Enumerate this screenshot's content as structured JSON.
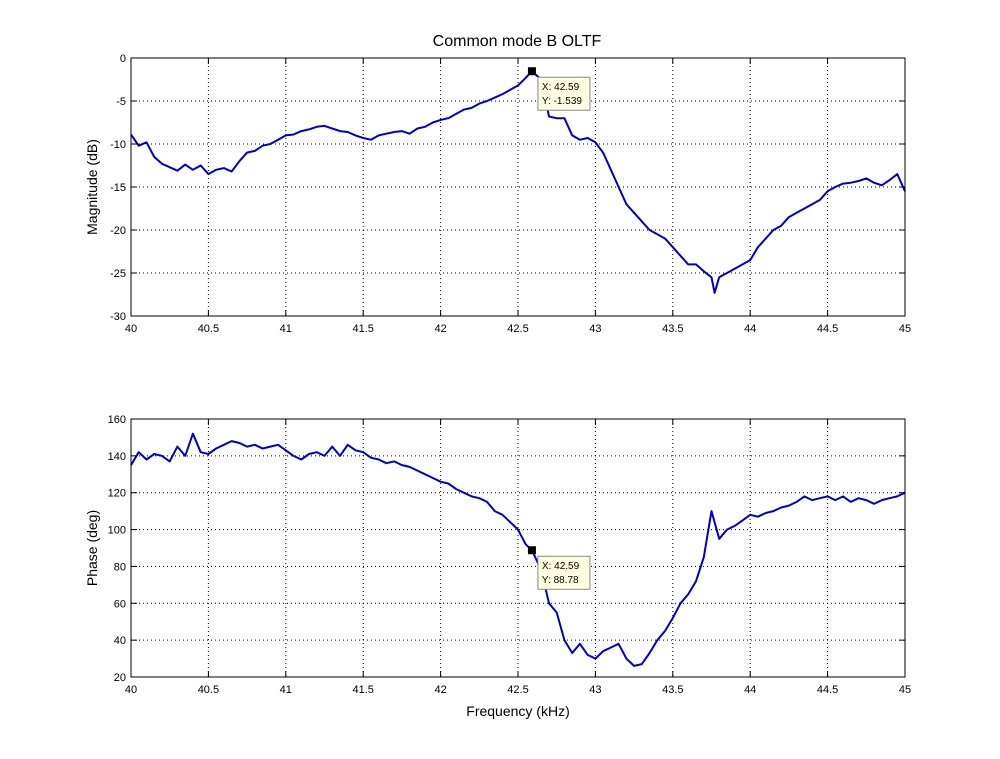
{
  "chart_data": [
    {
      "type": "line",
      "title": "Common mode B OLTF",
      "xlabel": "",
      "ylabel": "Magnitude (dB)",
      "xlim": [
        40,
        45
      ],
      "ylim": [
        -30,
        0
      ],
      "grid": true,
      "xticks": [
        "40",
        "40.5",
        "41",
        "41.5",
        "42",
        "42.5",
        "43",
        "43.5",
        "44",
        "44.5",
        "45"
      ],
      "yticks": [
        "0",
        "-5",
        "-10",
        "-15",
        "-20",
        "-25",
        "-30"
      ],
      "series_color": "#0000cc",
      "x": [
        40.0,
        40.05,
        40.1,
        40.15,
        40.2,
        40.25,
        40.3,
        40.35,
        40.4,
        40.45,
        40.5,
        40.55,
        40.6,
        40.65,
        40.7,
        40.75,
        40.8,
        40.85,
        40.9,
        40.95,
        41.0,
        41.05,
        41.1,
        41.15,
        41.2,
        41.25,
        41.3,
        41.35,
        41.4,
        41.45,
        41.5,
        41.55,
        41.6,
        41.65,
        41.7,
        41.75,
        41.8,
        41.85,
        41.9,
        41.95,
        42.0,
        42.05,
        42.1,
        42.15,
        42.2,
        42.25,
        42.3,
        42.35,
        42.4,
        42.45,
        42.5,
        42.55,
        42.59,
        42.65,
        42.7,
        42.75,
        42.8,
        42.85,
        42.9,
        42.95,
        43.0,
        43.05,
        43.1,
        43.15,
        43.2,
        43.25,
        43.3,
        43.35,
        43.4,
        43.45,
        43.5,
        43.55,
        43.6,
        43.65,
        43.7,
        43.75,
        43.77,
        43.8,
        43.85,
        43.9,
        43.95,
        44.0,
        44.05,
        44.1,
        44.15,
        44.2,
        44.25,
        44.3,
        44.35,
        44.4,
        44.45,
        44.5,
        44.55,
        44.6,
        44.65,
        44.7,
        44.75,
        44.8,
        44.85,
        44.9,
        44.95,
        45.0
      ],
      "y": [
        -8.9,
        -10.2,
        -9.8,
        -11.5,
        -12.3,
        -12.7,
        -13.1,
        -12.4,
        -13.0,
        -12.5,
        -13.5,
        -13.0,
        -12.8,
        -13.2,
        -12.0,
        -11.0,
        -10.8,
        -10.2,
        -10.0,
        -9.5,
        -9.0,
        -8.9,
        -8.5,
        -8.3,
        -8.0,
        -7.9,
        -8.2,
        -8.5,
        -8.6,
        -9.0,
        -9.3,
        -9.5,
        -9.0,
        -8.8,
        -8.6,
        -8.5,
        -8.8,
        -8.2,
        -8.0,
        -7.5,
        -7.2,
        -7.0,
        -6.5,
        -6.0,
        -5.8,
        -5.3,
        -5.0,
        -4.6,
        -4.2,
        -3.7,
        -3.2,
        -2.3,
        -1.539,
        -2.5,
        -6.8,
        -7.0,
        -7.0,
        -9.0,
        -9.5,
        -9.3,
        -9.8,
        -11.0,
        -13.0,
        -15.0,
        -17.0,
        -18.0,
        -19.0,
        -20.0,
        -20.5,
        -21.0,
        -22.0,
        -23.0,
        -24.0,
        -24.0,
        -24.8,
        -25.5,
        -27.3,
        -25.5,
        -25.0,
        -24.5,
        -24.0,
        -23.5,
        -22.0,
        -21.0,
        -20.0,
        -19.5,
        -18.5,
        -18.0,
        -17.5,
        -17.0,
        -16.5,
        -15.5,
        -15.0,
        -14.6,
        -14.5,
        -14.3,
        -14.0,
        -14.5,
        -14.8,
        -14.2,
        -13.5,
        -15.5
      ],
      "annotation": {
        "x_label": "X: 42.59",
        "y_label": "Y: -1.539",
        "x": 42.59,
        "y": -1.539
      }
    },
    {
      "type": "line",
      "title": "",
      "xlabel": "Frequency (kHz)",
      "ylabel": "Phase (deg)",
      "xlim": [
        40,
        45
      ],
      "ylim": [
        20,
        160
      ],
      "grid": true,
      "xticks": [
        "40",
        "40.5",
        "41",
        "41.5",
        "42",
        "42.5",
        "43",
        "43.5",
        "44",
        "44.5",
        "45"
      ],
      "yticks": [
        "160",
        "140",
        "120",
        "100",
        "80",
        "60",
        "40",
        "20"
      ],
      "series_color": "#0000cc",
      "x": [
        40.0,
        40.05,
        40.1,
        40.15,
        40.2,
        40.25,
        40.3,
        40.35,
        40.4,
        40.45,
        40.5,
        40.55,
        40.6,
        40.65,
        40.7,
        40.75,
        40.8,
        40.85,
        40.9,
        40.95,
        41.0,
        41.05,
        41.1,
        41.15,
        41.2,
        41.25,
        41.3,
        41.35,
        41.4,
        41.45,
        41.5,
        41.55,
        41.6,
        41.65,
        41.7,
        41.75,
        41.8,
        41.85,
        41.9,
        41.95,
        42.0,
        42.05,
        42.1,
        42.15,
        42.2,
        42.25,
        42.3,
        42.35,
        42.4,
        42.45,
        42.5,
        42.55,
        42.59,
        42.65,
        42.7,
        42.75,
        42.8,
        42.85,
        42.9,
        42.95,
        43.0,
        43.05,
        43.1,
        43.15,
        43.2,
        43.25,
        43.3,
        43.35,
        43.4,
        43.45,
        43.5,
        43.55,
        43.6,
        43.65,
        43.7,
        43.75,
        43.8,
        43.85,
        43.9,
        43.95,
        44.0,
        44.05,
        44.1,
        44.15,
        44.2,
        44.25,
        44.3,
        44.35,
        44.4,
        44.45,
        44.5,
        44.55,
        44.6,
        44.65,
        44.7,
        44.75,
        44.8,
        44.85,
        44.9,
        44.95,
        45.0
      ],
      "y": [
        135,
        142,
        138,
        141,
        140,
        137,
        145,
        140,
        152,
        142,
        141,
        144,
        146,
        148,
        147,
        145,
        146,
        144,
        145,
        146,
        143,
        140,
        138,
        141,
        142,
        140,
        145,
        140,
        146,
        143,
        142,
        139,
        138,
        136,
        137,
        135,
        134,
        132,
        130,
        128,
        126,
        125,
        122,
        120,
        118,
        117,
        115,
        110,
        108,
        104,
        100,
        92,
        88.78,
        78,
        60,
        55,
        40,
        33,
        38,
        32,
        30,
        34,
        36,
        38,
        30,
        26,
        27,
        33,
        40,
        45,
        52,
        60,
        65,
        72,
        85,
        110,
        95,
        100,
        102,
        105,
        108,
        107,
        109,
        110,
        112,
        113,
        115,
        118,
        116,
        117,
        118,
        116,
        118,
        115,
        117,
        116,
        114,
        116,
        117,
        118,
        120
      ],
      "annotation": {
        "x_label": "X: 42.59",
        "y_label": "Y: 88.78",
        "x": 42.59,
        "y": 88.78
      }
    }
  ]
}
